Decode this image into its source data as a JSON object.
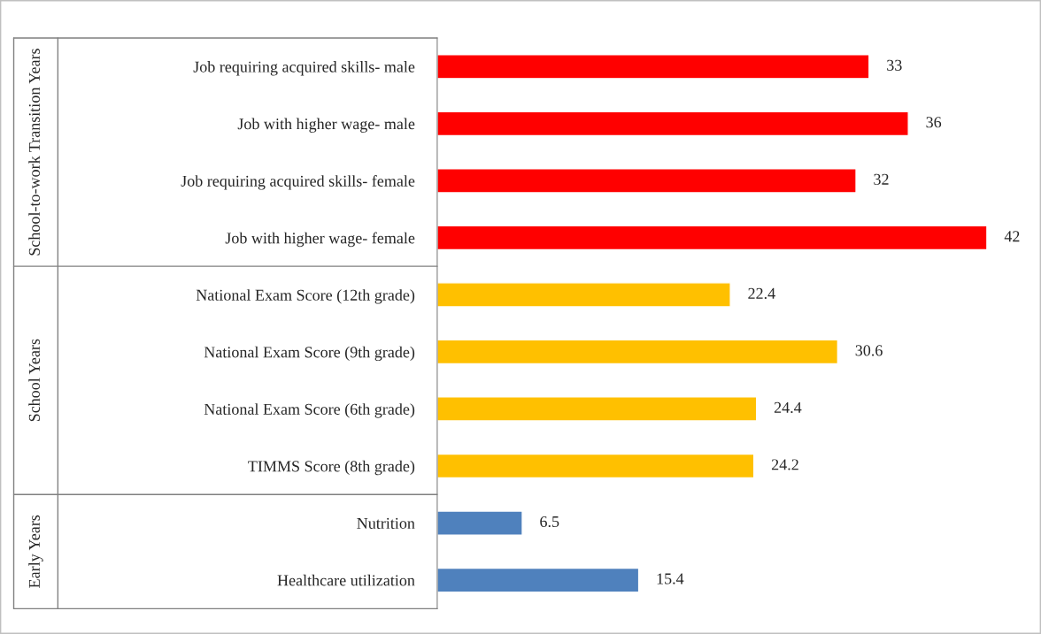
{
  "chart_data": {
    "type": "bar",
    "orientation": "horizontal",
    "categories": [
      "Job requiring acquired skills- male",
      "Job with higher wage- male",
      "Job requiring acquired skills- female",
      "Job with higher wage- female",
      "National Exam Score (12th grade)",
      "National Exam Score (9th grade)",
      "National Exam Score (6th grade)",
      "TIMMS Score (8th grade)",
      "Nutrition",
      "Healthcare utilization"
    ],
    "values": [
      33,
      36,
      32,
      42,
      22.4,
      30.6,
      24.4,
      24.2,
      6.5,
      15.4
    ],
    "colors": [
      "#ff0000",
      "#ff0000",
      "#ff0000",
      "#ff0000",
      "#ffc000",
      "#ffc000",
      "#ffc000",
      "#ffc000",
      "#4f81bd",
      "#4f81bd"
    ],
    "data_labels": true,
    "tick_labels": "y",
    "grid": false,
    "legend": false,
    "annotations": [
      "School-to-work Transition Years",
      "School Years",
      "Early Years"
    ]
  }
}
